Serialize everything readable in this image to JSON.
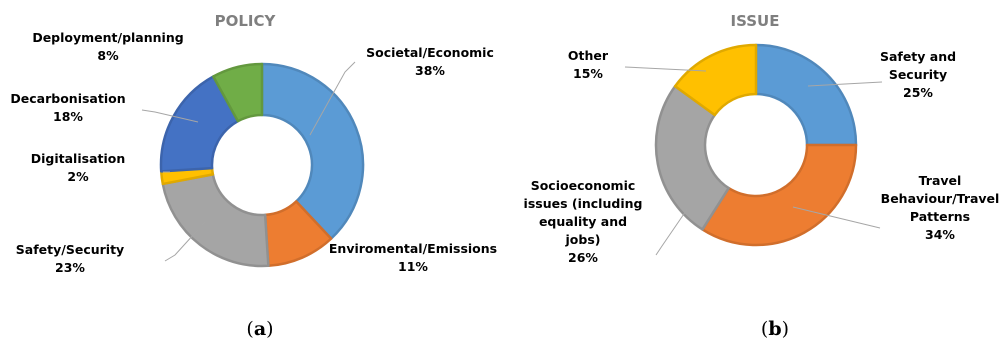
{
  "figure": {
    "captions": [
      {
        "open": "(",
        "letter": "a",
        "close": ")"
      },
      {
        "open": "(",
        "letter": "b",
        "close": ")"
      }
    ]
  },
  "chart_data": [
    {
      "type": "pie",
      "donut": true,
      "title": "POLICY",
      "slices": [
        {
          "label": "Societal/Economic",
          "value_label": "38%",
          "value": 38,
          "color": "#5b9bd5"
        },
        {
          "label": "Enviromental/Emissions",
          "value_label": "11%",
          "value": 11,
          "color": "#ed7d31"
        },
        {
          "label": "Safety/Security",
          "value_label": "23%",
          "value": 23,
          "color": "#a5a5a5"
        },
        {
          "label": "Digitalisation",
          "value_label": "2%",
          "value": 2,
          "color": "#ffc000"
        },
        {
          "label": "Decarbonisation",
          "value_label": "18%",
          "value": 18,
          "color": "#4472c4"
        },
        {
          "label": "Deployment/planning",
          "value_label": "8%",
          "value": 8,
          "color": "#70ad47"
        }
      ]
    },
    {
      "type": "pie",
      "donut": true,
      "title": "ISSUE",
      "slices": [
        {
          "label": "Safety and Security",
          "value_label": "25%",
          "value": 25,
          "color": "#5b9bd5"
        },
        {
          "label": "Travel Behaviour/Travel Patterns",
          "value_label": "34%",
          "value": 34,
          "color": "#ed7d31"
        },
        {
          "label": "Socioeconomic issues (including equality and jobs)",
          "value_label": "26%",
          "value": 26,
          "color": "#a5a5a5"
        },
        {
          "label": "Other",
          "value_label": "15%",
          "value": 15,
          "color": "#ffc000"
        }
      ]
    }
  ]
}
